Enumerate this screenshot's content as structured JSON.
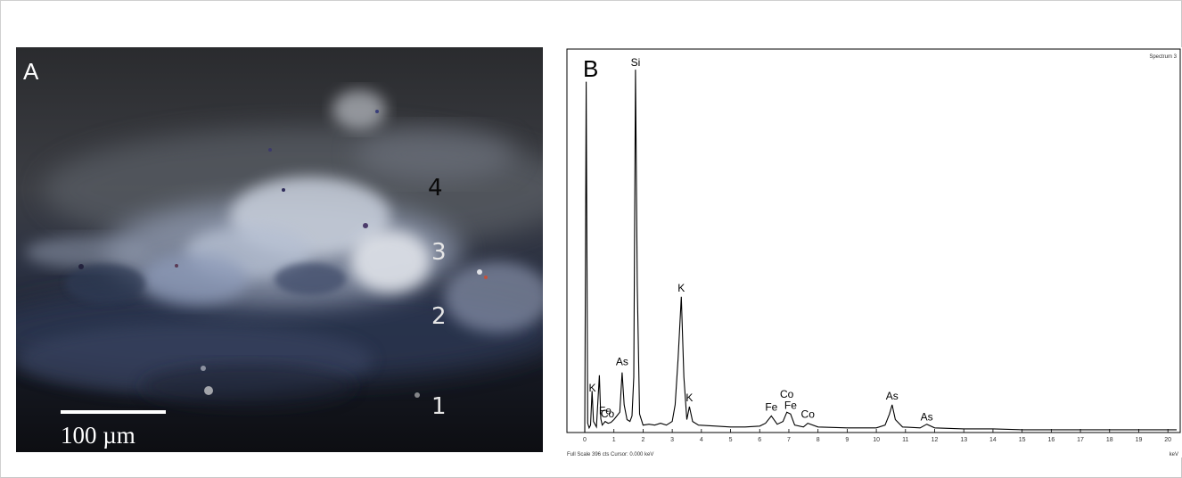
{
  "panel_a": {
    "letter": "A",
    "layer_labels": [
      "4",
      "3",
      "2",
      "1"
    ],
    "scale_bar_label": "100 µm"
  },
  "panel_b": {
    "letter": "B",
    "spectrum_name": "Spectrum 3",
    "footer_text": "Full Scale 396 cts  Cursor: 0.000 keV",
    "unit_label": "keV",
    "peak_labels": [
      {
        "text": "Si",
        "kev": 1.74
      },
      {
        "text": "K",
        "kev": 3.31
      },
      {
        "text": "K",
        "kev": 3.59
      },
      {
        "text": "K",
        "kev": 0.26
      },
      {
        "text": "Fe",
        "kev": 0.7
      },
      {
        "text": "Co",
        "kev": 0.78
      },
      {
        "text": "As",
        "kev": 1.28
      },
      {
        "text": "Fe",
        "kev": 6.4
      },
      {
        "text": "Co",
        "kev": 6.93
      },
      {
        "text": "Fe",
        "kev": 7.06
      },
      {
        "text": "Co",
        "kev": 7.65
      },
      {
        "text": "As",
        "kev": 10.54
      },
      {
        "text": "As",
        "kev": 11.73
      }
    ]
  },
  "chart_data": {
    "type": "line",
    "title": "Spectrum 3",
    "xlabel": "keV",
    "ylabel": "",
    "xlim": [
      0,
      20.3
    ],
    "ylim": [
      0,
      396
    ],
    "x_ticks": [
      "0",
      "1",
      "2",
      "3",
      "4",
      "5",
      "6",
      "7",
      "8",
      "9",
      "10",
      "11",
      "12",
      "13",
      "14",
      "15",
      "16",
      "17",
      "18",
      "19",
      "20"
    ],
    "series": [
      {
        "x": [
          0.0,
          0.05,
          0.1,
          0.15,
          0.2,
          0.25,
          0.3,
          0.4,
          0.5,
          0.55,
          0.6,
          0.7,
          0.8,
          0.9,
          1.0,
          1.1,
          1.2,
          1.28,
          1.35,
          1.45,
          1.55,
          1.62,
          1.68,
          1.74,
          1.8,
          1.88,
          2.0,
          2.2,
          2.4,
          2.6,
          2.8,
          3.0,
          3.1,
          3.2,
          3.31,
          3.4,
          3.5,
          3.59,
          3.7,
          3.9,
          4.5,
          5.0,
          5.5,
          6.0,
          6.2,
          6.4,
          6.6,
          6.8,
          6.93,
          7.06,
          7.2,
          7.5,
          7.65,
          8.0,
          9.0,
          10.0,
          10.3,
          10.45,
          10.54,
          10.65,
          10.9,
          11.5,
          11.73,
          12.0,
          13.0,
          14.0,
          15.0,
          16.0,
          17.0,
          18.0,
          19.0,
          20.0,
          20.3
        ],
        "y": [
          0,
          380,
          10,
          5,
          8,
          45,
          12,
          6,
          62,
          15,
          8,
          12,
          10,
          11,
          14,
          18,
          22,
          65,
          30,
          14,
          12,
          18,
          60,
          393,
          160,
          20,
          8,
          9,
          8,
          10,
          8,
          12,
          30,
          80,
          147,
          60,
          14,
          28,
          12,
          8,
          7,
          6,
          6,
          7,
          10,
          18,
          9,
          12,
          22,
          20,
          8,
          6,
          10,
          6,
          5,
          5,
          8,
          20,
          30,
          14,
          6,
          5,
          9,
          5,
          4,
          4,
          3,
          3,
          3,
          3,
          3,
          3,
          3
        ]
      }
    ]
  }
}
